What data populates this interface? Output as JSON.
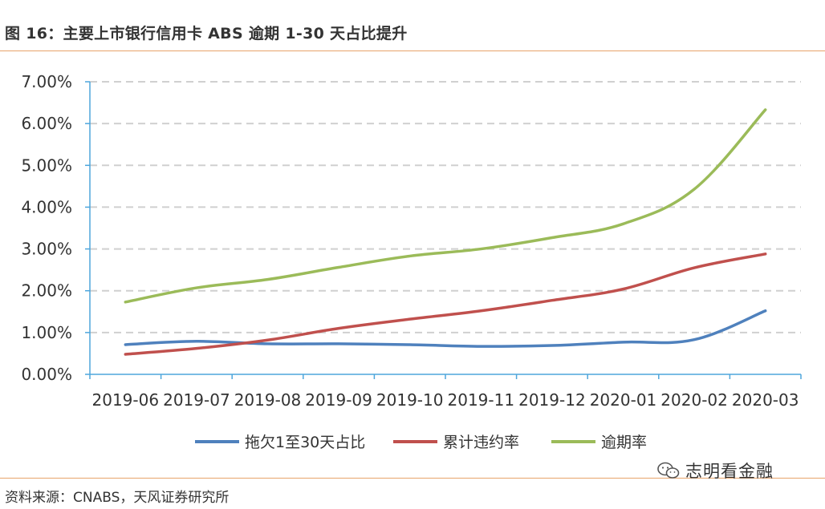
{
  "title": "图 16：主要上市银行信用卡 ABS 逾期 1-30 天占比提升",
  "source": "资料来源：CNABS，天风证券研究所",
  "watermark": "志明看金融",
  "chart_data": {
    "type": "line",
    "categories": [
      "2019-06",
      "2019-07",
      "2019-08",
      "2019-09",
      "2019-10",
      "2019-11",
      "2019-12",
      "2020-01",
      "2020-02",
      "2020-03"
    ],
    "ylim": [
      0,
      0.07
    ],
    "yticks": [
      "0.00%",
      "1.00%",
      "2.00%",
      "3.00%",
      "4.00%",
      "5.00%",
      "6.00%",
      "7.00%"
    ],
    "grid": true,
    "legend": "bottom",
    "series": [
      {
        "name": "拖欠1至30天占比",
        "color": "#4f81bd",
        "values": [
          0.0071,
          0.0079,
          0.0073,
          0.0073,
          0.0071,
          0.0067,
          0.0069,
          0.0077,
          0.0083,
          0.0152
        ]
      },
      {
        "name": "累计违约率",
        "color": "#c0504d",
        "values": [
          0.0048,
          0.0062,
          0.0082,
          0.011,
          0.0132,
          0.0152,
          0.0177,
          0.0204,
          0.0255,
          0.0288
        ]
      },
      {
        "name": "逾期率",
        "color": "#9bbb59",
        "values": [
          0.0173,
          0.0207,
          0.0227,
          0.0256,
          0.0283,
          0.03,
          0.0327,
          0.036,
          0.0443,
          0.0633
        ]
      }
    ]
  }
}
